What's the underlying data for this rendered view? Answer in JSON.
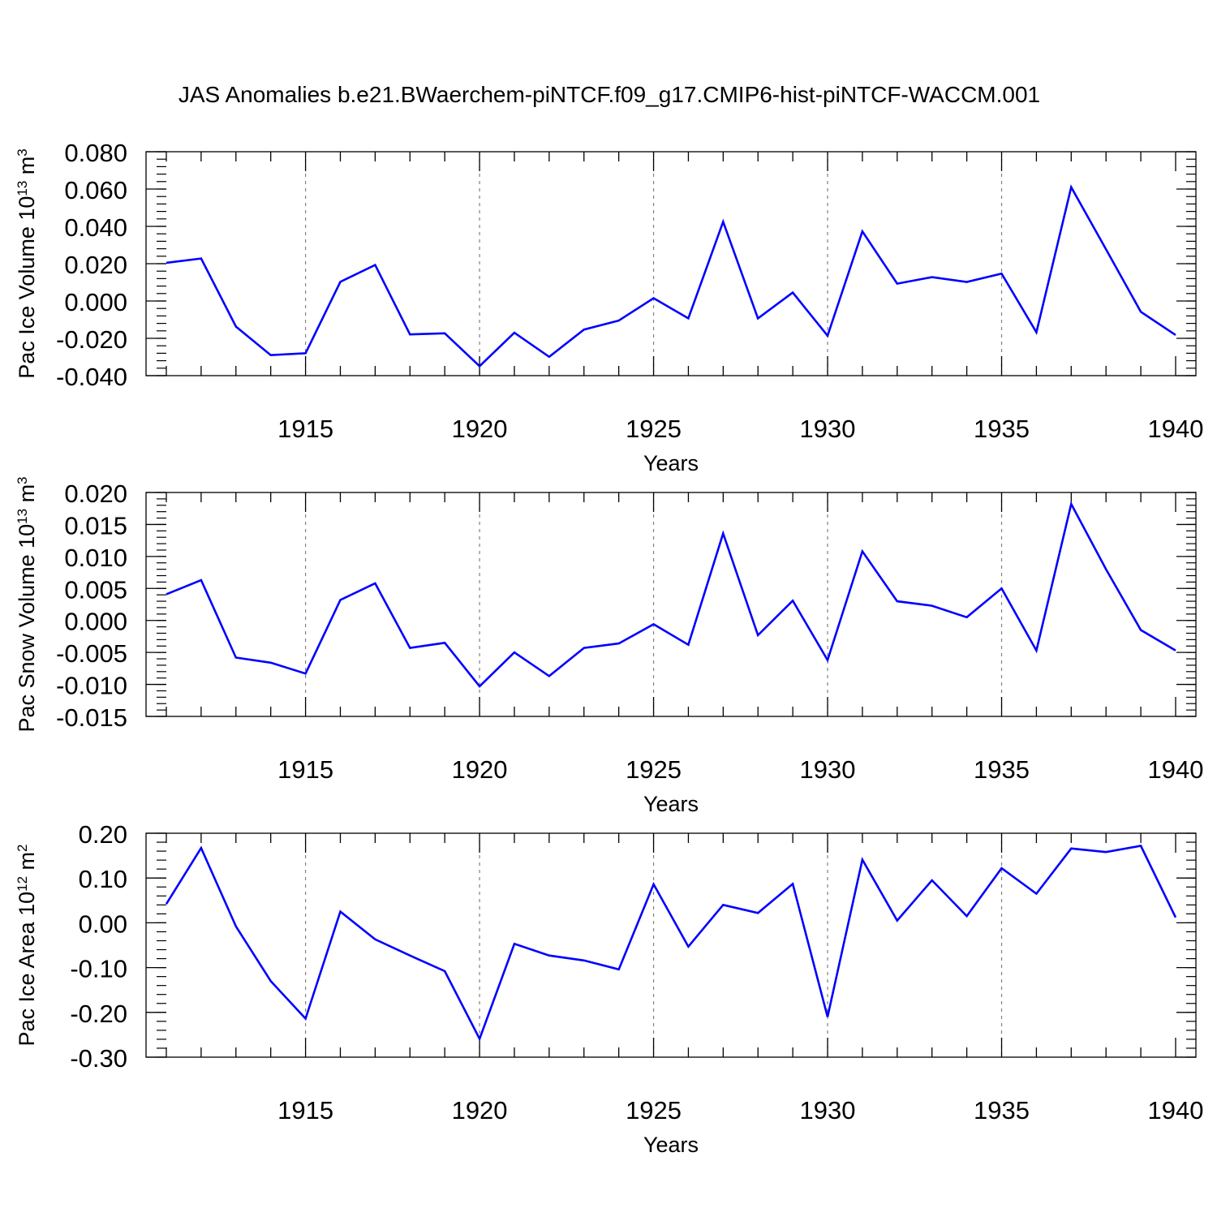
{
  "figure": {
    "title": "JAS Anomalies b.e21.BWaerchem-piNTCF.f09_g17.CMIP6-hist-piNTCF-WACCM.001"
  },
  "colors": {
    "line": "#0000ff",
    "axis": "#000000",
    "grid": "#808080"
  },
  "chart_data": [
    {
      "type": "line",
      "title": "",
      "xlabel": "Years",
      "ylabel": "Pac Ice Volume 10",
      "ylabel_exp": "13",
      "ylabel_unit": " m",
      "ylabel_unit_exp": "3",
      "xlim": [
        1911,
        1940
      ],
      "ylim": [
        -0.04,
        0.08
      ],
      "x_ticks": [
        1915,
        1920,
        1925,
        1930,
        1935,
        1940
      ],
      "x_tick_labels": [
        "1915",
        "1920",
        "1925",
        "1930",
        "1935",
        "1940"
      ],
      "y_ticks": [
        -0.04,
        -0.02,
        0.0,
        0.02,
        0.04,
        0.06,
        0.08
      ],
      "y_tick_labels": [
        "-0.040",
        "-0.020",
        "0.000",
        "0.020",
        "0.040",
        "0.060",
        "0.080"
      ],
      "grid": "x-dashed",
      "series": [
        {
          "name": "Pac Ice Volume",
          "x": [
            1911,
            1912,
            1913,
            1914,
            1915,
            1916,
            1917,
            1918,
            1919,
            1920,
            1921,
            1922,
            1923,
            1924,
            1925,
            1926,
            1927,
            1928,
            1929,
            1930,
            1931,
            1932,
            1933,
            1934,
            1935,
            1936,
            1937,
            1938,
            1939,
            1940
          ],
          "values": [
            0.0205,
            0.0228,
            -0.0137,
            -0.029,
            -0.028,
            0.0103,
            0.0193,
            -0.0179,
            -0.0173,
            -0.0349,
            -0.017,
            -0.0299,
            -0.0153,
            -0.0105,
            0.0015,
            -0.0093,
            0.0425,
            -0.0093,
            0.0045,
            -0.0186,
            0.0373,
            0.0093,
            0.0128,
            0.0102,
            0.0147,
            -0.0168,
            0.061,
            0.0277,
            -0.0058,
            -0.0182
          ]
        }
      ]
    },
    {
      "type": "line",
      "title": "",
      "xlabel": "Years",
      "ylabel": "Pac Snow Volume 10",
      "ylabel_exp": "13",
      "ylabel_unit": " m",
      "ylabel_unit_exp": "3",
      "xlim": [
        1911,
        1940
      ],
      "ylim": [
        -0.015,
        0.02
      ],
      "x_ticks": [
        1915,
        1920,
        1925,
        1930,
        1935,
        1940
      ],
      "x_tick_labels": [
        "1915",
        "1920",
        "1925",
        "1930",
        "1935",
        "1940"
      ],
      "y_ticks": [
        -0.015,
        -0.01,
        -0.005,
        0.0,
        0.005,
        0.01,
        0.015,
        0.02
      ],
      "y_tick_labels": [
        "-0.015",
        "-0.010",
        "-0.005",
        "0.000",
        "0.005",
        "0.010",
        "0.015",
        "0.020"
      ],
      "grid": "x-dashed",
      "series": [
        {
          "name": "Pac Snow Volume",
          "x": [
            1911,
            1912,
            1913,
            1914,
            1915,
            1916,
            1917,
            1918,
            1919,
            1920,
            1921,
            1922,
            1923,
            1924,
            1925,
            1926,
            1927,
            1928,
            1929,
            1930,
            1931,
            1932,
            1933,
            1934,
            1935,
            1936,
            1937,
            1938,
            1939,
            1940
          ],
          "values": [
            0.0041,
            0.0063,
            -0.0058,
            -0.0066,
            -0.0083,
            0.0032,
            0.0058,
            -0.0043,
            -0.0035,
            -0.0103,
            -0.005,
            -0.0087,
            -0.0043,
            -0.0036,
            -0.0006,
            -0.0038,
            0.0136,
            -0.0023,
            0.0031,
            -0.0062,
            0.0108,
            0.003,
            0.0023,
            0.0005,
            0.005,
            -0.0047,
            0.0182,
            0.008,
            -0.0015,
            -0.0047
          ]
        }
      ]
    },
    {
      "type": "line",
      "title": "",
      "xlabel": "Years",
      "ylabel": "Pac Ice Area 10",
      "ylabel_exp": "12",
      "ylabel_unit": " m",
      "ylabel_unit_exp": "2",
      "xlim": [
        1911,
        1940
      ],
      "ylim": [
        -0.3,
        0.2
      ],
      "x_ticks": [
        1915,
        1920,
        1925,
        1930,
        1935,
        1940
      ],
      "x_tick_labels": [
        "1915",
        "1920",
        "1925",
        "1930",
        "1935",
        "1940"
      ],
      "y_ticks": [
        -0.3,
        -0.2,
        -0.1,
        0.0,
        0.1,
        0.2
      ],
      "y_tick_labels": [
        "-0.30",
        "-0.20",
        "-0.10",
        "0.00",
        "0.10",
        "0.20"
      ],
      "grid": "x-dashed",
      "series": [
        {
          "name": "Pac Ice Area",
          "x": [
            1911,
            1912,
            1913,
            1914,
            1915,
            1916,
            1917,
            1918,
            1919,
            1920,
            1921,
            1922,
            1923,
            1924,
            1925,
            1926,
            1927,
            1928,
            1929,
            1930,
            1931,
            1932,
            1933,
            1934,
            1935,
            1936,
            1937,
            1938,
            1939,
            1940
          ],
          "values": [
            0.042,
            0.167,
            -0.008,
            -0.13,
            -0.214,
            0.025,
            -0.037,
            -0.073,
            -0.108,
            -0.259,
            -0.047,
            -0.073,
            -0.084,
            -0.104,
            0.086,
            -0.053,
            0.04,
            0.022,
            0.087,
            -0.21,
            0.141,
            0.005,
            0.095,
            0.015,
            0.122,
            0.065,
            0.166,
            0.158,
            0.172,
            0.012
          ]
        }
      ]
    }
  ]
}
